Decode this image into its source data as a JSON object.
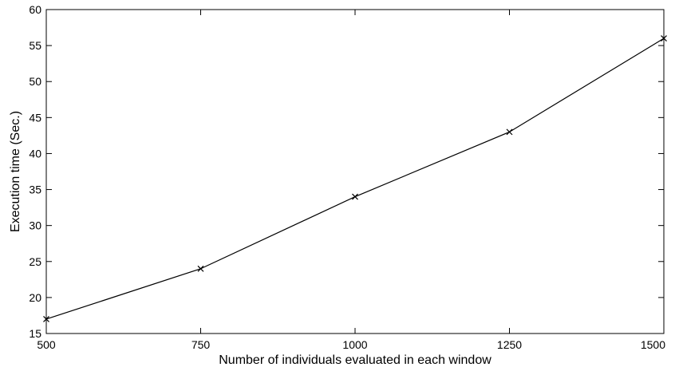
{
  "chart_data": {
    "type": "line",
    "title": "",
    "xlabel": "Number of individuals evaluated in each window",
    "ylabel": "Execution time (Sec.)",
    "xlim": [
      500,
      1500
    ],
    "ylim": [
      15,
      60
    ],
    "xticks": [
      500,
      750,
      1000,
      1250,
      1500
    ],
    "yticks": [
      15,
      20,
      25,
      30,
      35,
      40,
      45,
      50,
      55,
      60
    ],
    "grid": false,
    "legend": "none",
    "series": [
      {
        "color": "#000000",
        "marker": "x",
        "x": [
          500,
          750,
          1000,
          1250,
          1500
        ],
        "y": [
          17,
          24,
          34,
          43,
          56
        ]
      }
    ]
  }
}
